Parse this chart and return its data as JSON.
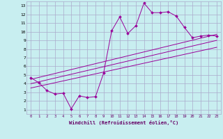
{
  "xlabel": "Windchill (Refroidissement éolien,°C)",
  "background_color": "#c8eef0",
  "grid_color": "#aaaacc",
  "line_color": "#990099",
  "xlim": [
    -0.5,
    23.5
  ],
  "ylim": [
    0.5,
    13.5
  ],
  "xticks": [
    0,
    1,
    2,
    3,
    4,
    5,
    6,
    7,
    8,
    9,
    10,
    11,
    12,
    13,
    14,
    15,
    16,
    17,
    18,
    19,
    20,
    21,
    22,
    23
  ],
  "yticks": [
    1,
    2,
    3,
    4,
    5,
    6,
    7,
    8,
    9,
    10,
    11,
    12,
    13
  ],
  "line1_x": [
    0,
    1,
    2,
    3,
    4,
    5,
    6,
    7,
    8,
    9,
    10,
    11,
    12,
    13,
    14,
    15,
    16,
    17,
    18,
    19,
    20,
    21,
    22,
    23
  ],
  "line1_y": [
    4.7,
    4.1,
    3.2,
    2.8,
    2.9,
    1.1,
    2.6,
    2.4,
    2.5,
    5.2,
    10.1,
    11.7,
    9.8,
    10.7,
    13.3,
    12.2,
    12.2,
    12.3,
    11.8,
    10.5,
    9.3,
    9.5,
    9.6,
    9.5
  ],
  "line2_x": [
    0,
    23
  ],
  "line2_y": [
    4.5,
    9.7
  ],
  "line3_x": [
    0,
    23
  ],
  "line3_y": [
    4.0,
    9.0
  ],
  "line4_x": [
    0,
    23
  ],
  "line4_y": [
    3.5,
    8.2
  ]
}
